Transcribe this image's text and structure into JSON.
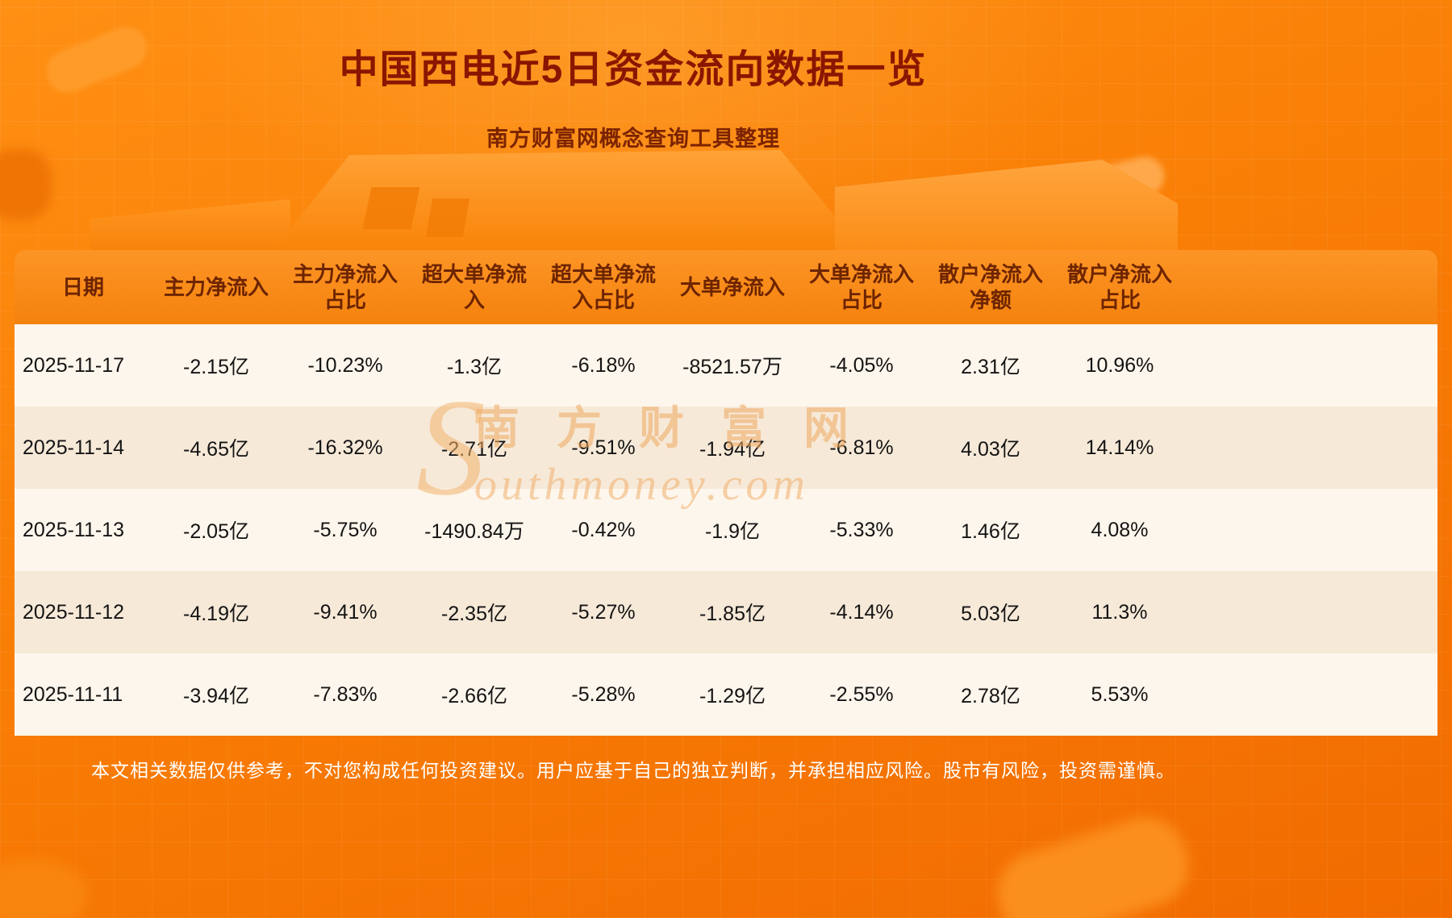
{
  "header": {
    "title": "中国西电近5日资金流向数据一览",
    "subtitle": "南方财富网概念查询工具整理"
  },
  "watermark": {
    "big_letter": "S",
    "cn": "南方财富网",
    "en": "outhmoney.com"
  },
  "footer": {
    "disclaimer": "本文相关数据仅供参考，不对您构成任何投资建议。用户应基于自己的独立判断，并承担相应风险。股市有风险，投资需谨慎。"
  },
  "chart_data": {
    "type": "table",
    "title": "中国西电近5日资金流向数据一览",
    "columns": [
      "日期",
      "主力净流入",
      "主力净流入占比",
      "超大单净流入",
      "超大单净流入占比",
      "大单净流入",
      "大单净流入占比",
      "散户净流入净额",
      "散户净流入占比"
    ],
    "rows": [
      [
        "2025-11-17",
        "-2.15亿",
        "-10.23%",
        "-1.3亿",
        "-6.18%",
        "-8521.57万",
        "-4.05%",
        "2.31亿",
        "10.96%"
      ],
      [
        "2025-11-14",
        "-4.65亿",
        "-16.32%",
        "-2.71亿",
        "-9.51%",
        "-1.94亿",
        "-6.81%",
        "4.03亿",
        "14.14%"
      ],
      [
        "2025-11-13",
        "-2.05亿",
        "-5.75%",
        "-1490.84万",
        "-0.42%",
        "-1.9亿",
        "-5.33%",
        "1.46亿",
        "4.08%"
      ],
      [
        "2025-11-12",
        "-4.19亿",
        "-9.41%",
        "-2.35亿",
        "-5.27%",
        "-1.85亿",
        "-4.14%",
        "5.03亿",
        "11.3%"
      ],
      [
        "2025-11-11",
        "-3.94亿",
        "-7.83%",
        "-2.66亿",
        "-5.28%",
        "-1.29亿",
        "-2.55%",
        "2.78亿",
        "5.53%"
      ]
    ]
  },
  "colors": {
    "title_text": "#8a1600",
    "subtitle_text": "#7c2300",
    "header_text": "#6d2400",
    "row_light": "#fdf6ec",
    "row_dark": "#f6e9d8",
    "background_accent": "#f97d06",
    "disclaimer_text": "#ffffff"
  }
}
